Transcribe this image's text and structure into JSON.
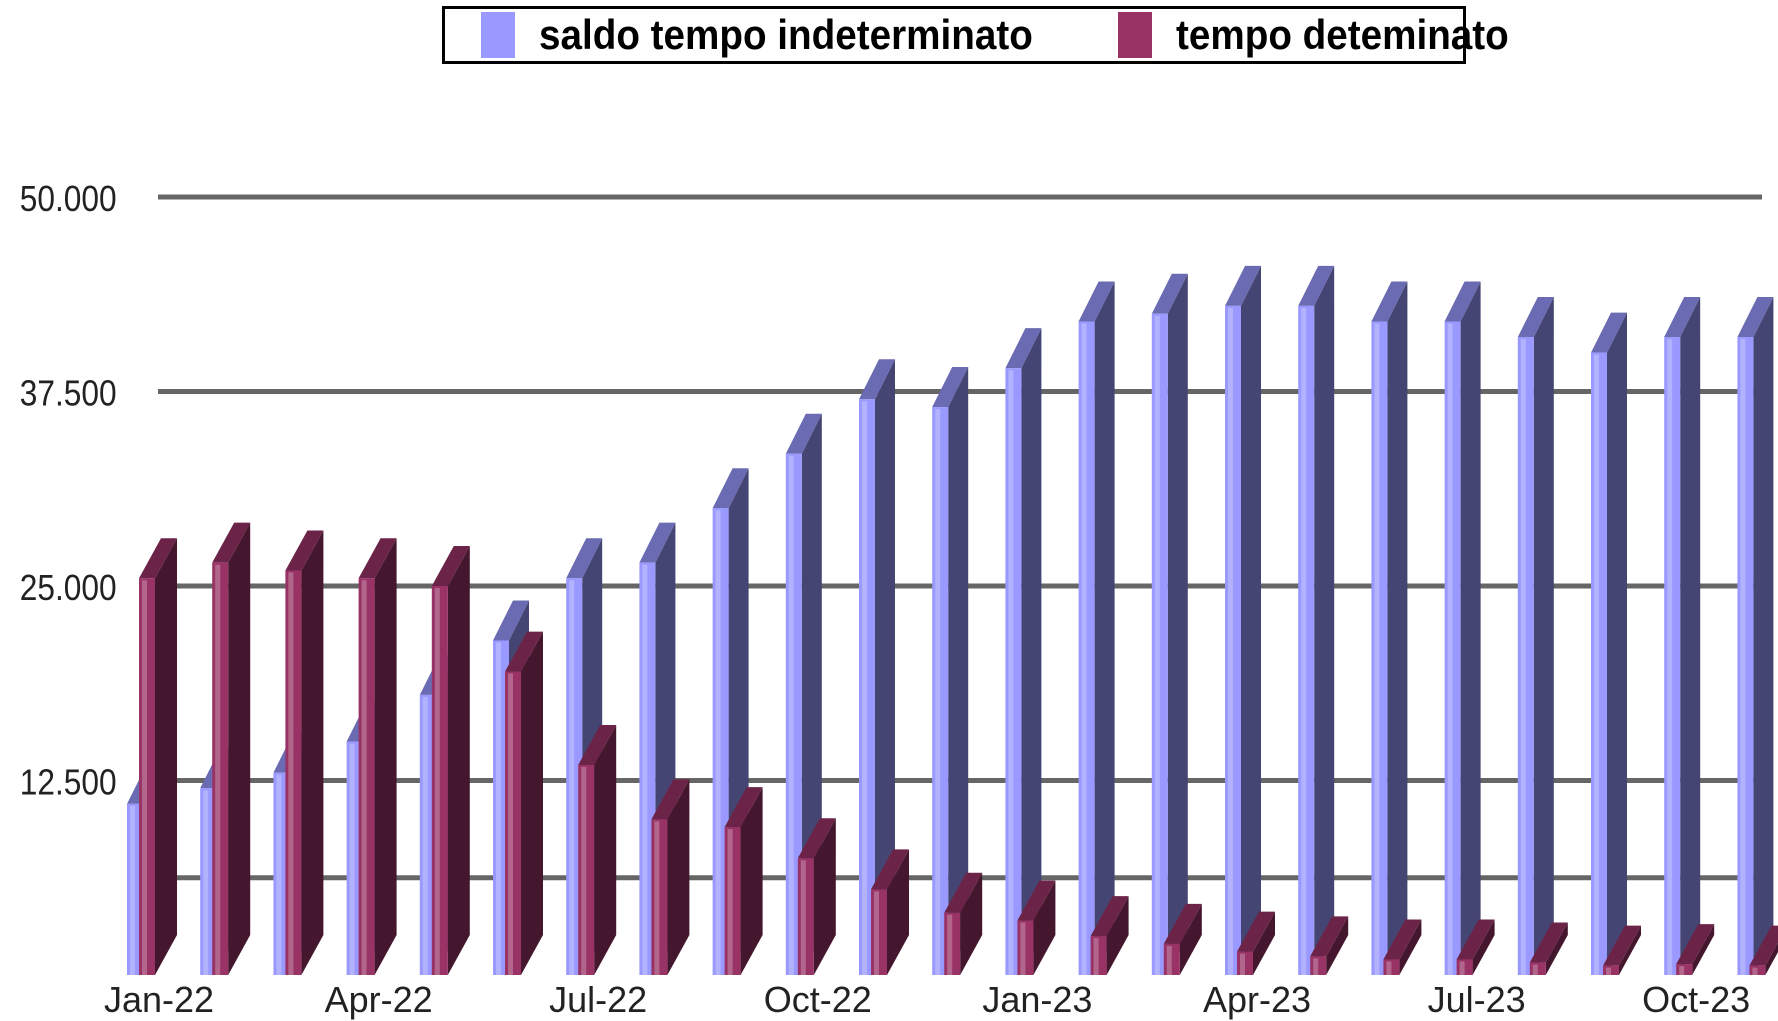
{
  "chart_data": {
    "type": "bar",
    "variant": "3d-clustered-column",
    "title": "",
    "xlabel": "",
    "ylabel": "",
    "ylim": [
      0,
      50000
    ],
    "y_ticks": [
      12500,
      25000,
      37500,
      50000
    ],
    "y_tick_labels": [
      "12.500",
      "25.000",
      "37.500",
      "50.000"
    ],
    "grid": true,
    "legend_position": "top",
    "categories": [
      "Jan-22",
      "Feb-22",
      "Mar-22",
      "Apr-22",
      "May-22",
      "Jun-22",
      "Jul-22",
      "Aug-22",
      "Sep-22",
      "Oct-22",
      "Nov-22",
      "Dec-22",
      "Jan-23",
      "Feb-23",
      "Mar-23",
      "Apr-23",
      "May-23",
      "Jun-23",
      "Jul-23",
      "Aug-23",
      "Sep-23",
      "Oct-23",
      "Nov-23"
    ],
    "x_tick_labels": [
      "Jan-22",
      "Apr-22",
      "Jul-22",
      "Oct-22",
      "Jan-23",
      "Apr-23",
      "Jul-23",
      "Oct-23"
    ],
    "series": [
      {
        "name": "saldo tempo indeterminato",
        "color": "#9999ff",
        "values": [
          11000,
          12000,
          13000,
          15000,
          18000,
          21500,
          25500,
          26500,
          30000,
          33500,
          37000,
          36500,
          39000,
          42000,
          42500,
          43000,
          43000,
          42000,
          42000,
          41000,
          40000,
          41000,
          41000
        ]
      },
      {
        "name": "tempo deteminato",
        "color": "#993366",
        "values": [
          25500,
          26500,
          26000,
          25500,
          25000,
          19500,
          13500,
          10000,
          9500,
          7500,
          5500,
          4000,
          3500,
          2500,
          2000,
          1500,
          1200,
          1000,
          1000,
          800,
          600,
          700,
          600
        ]
      }
    ]
  }
}
